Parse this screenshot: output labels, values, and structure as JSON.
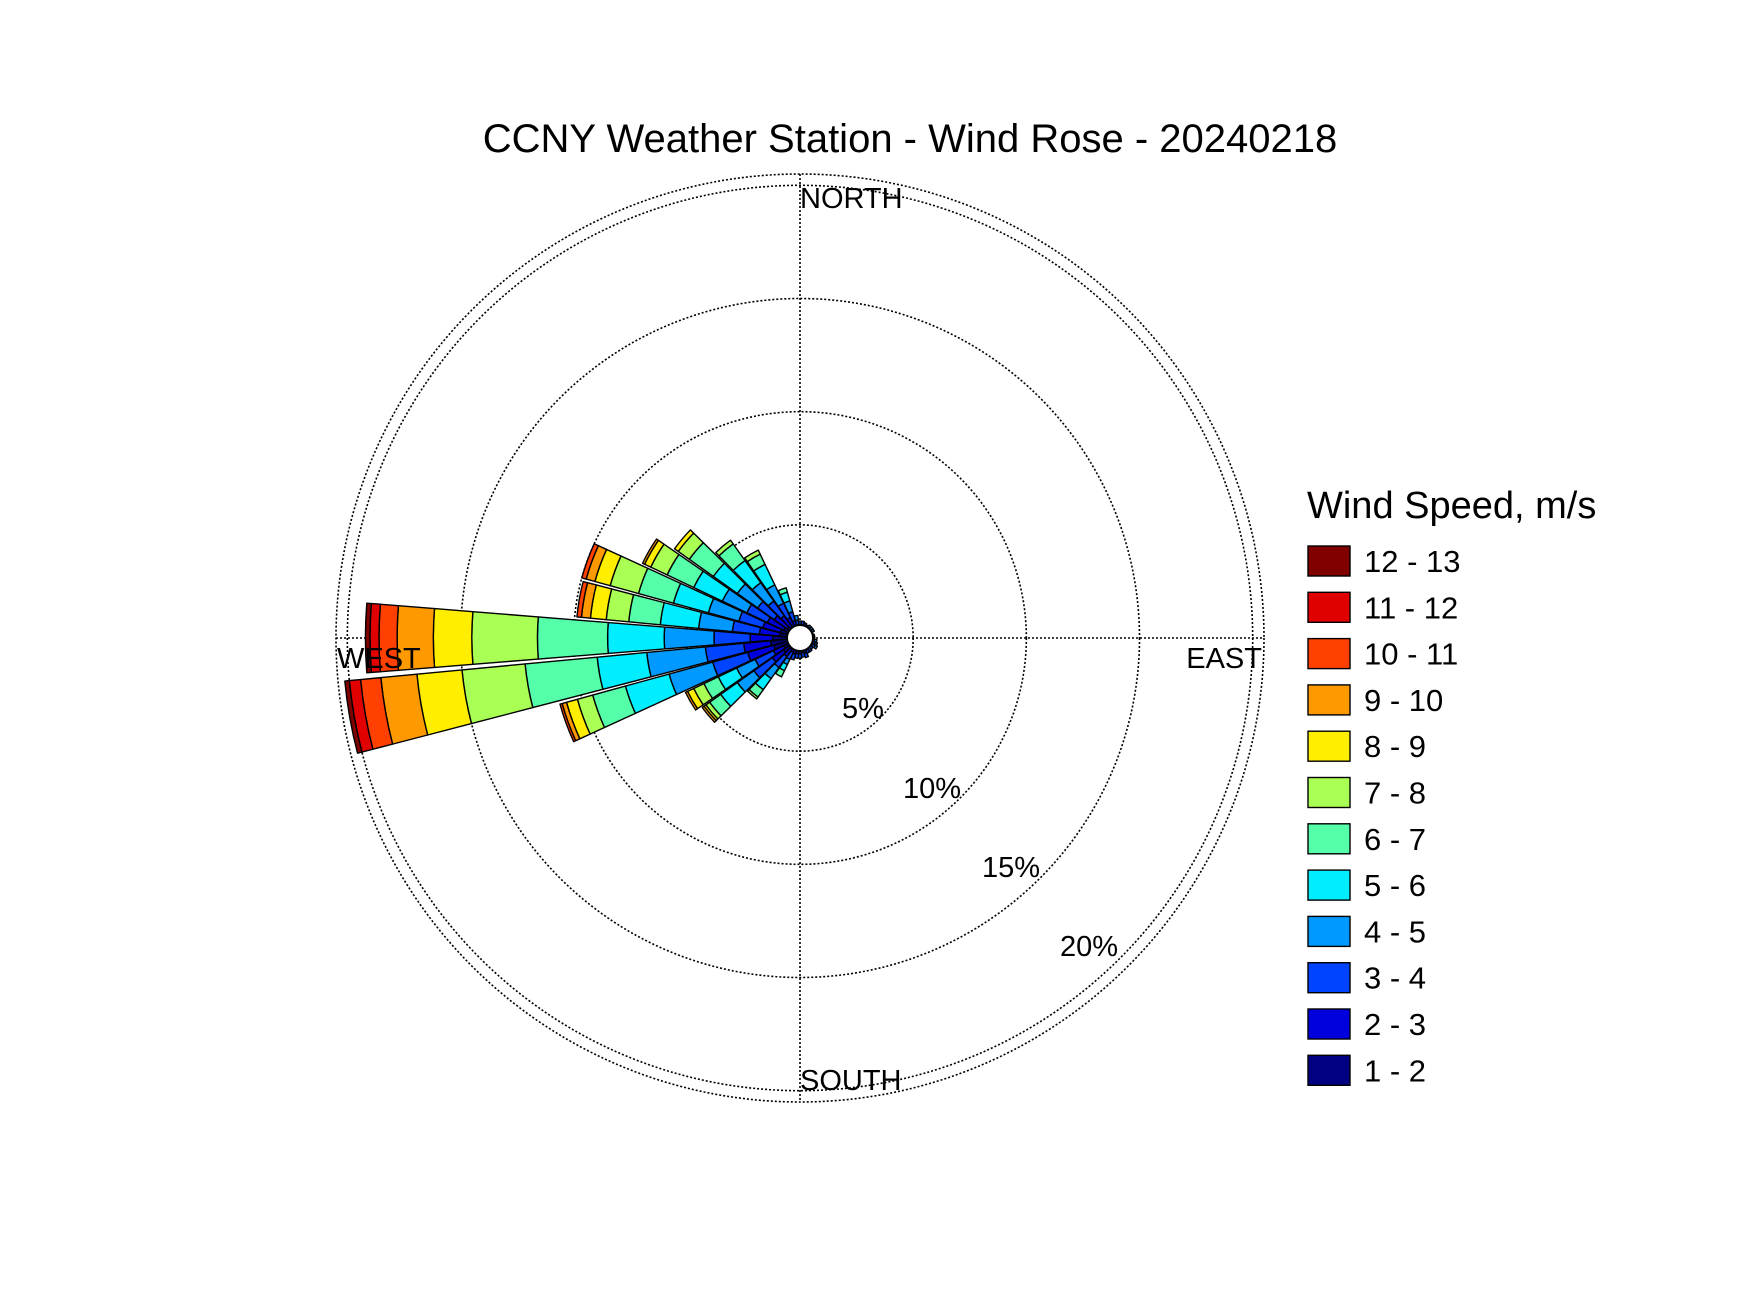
{
  "chart_data": {
    "type": "wind-rose",
    "title": "CCNY Weather Station - Wind Rose - 20240218",
    "directions": {
      "north": "NORTH",
      "east": "EAST",
      "south": "SOUTH",
      "west": "WEST"
    },
    "rings": [
      {
        "value": 5,
        "label": "5%"
      },
      {
        "value": 10,
        "label": "10%"
      },
      {
        "value": 15,
        "label": "15%"
      },
      {
        "value": 20,
        "label": "20%"
      }
    ],
    "rlim": [
      0,
      20.5
    ],
    "grid": true,
    "legend": {
      "title": "Wind Speed, m/s",
      "placement": "right",
      "bins": [
        {
          "label": "12 - 13",
          "color": "#800000"
        },
        {
          "label": "11 - 12",
          "color": "#e00000"
        },
        {
          "label": "10 - 11",
          "color": "#ff4000"
        },
        {
          "label": "9 - 10",
          "color": "#ff9900"
        },
        {
          "label": "8 - 9",
          "color": "#ffee00"
        },
        {
          "label": "7 - 8",
          "color": "#aaff55"
        },
        {
          "label": "6 - 7",
          "color": "#55ffaa"
        },
        {
          "label": "5 - 6",
          "color": "#00eeff"
        },
        {
          "label": "4 - 5",
          "color": "#0099ff"
        },
        {
          "label": "3 - 4",
          "color": "#0044ff"
        },
        {
          "label": "2 - 3",
          "color": "#0000dd"
        },
        {
          "label": "1 - 2",
          "color": "#000080"
        }
      ]
    },
    "sector_width_deg": 10,
    "sectors": [
      {
        "direction": 40,
        "cumulative": [
          0.35,
          0.5,
          0.6,
          0.7
        ]
      },
      {
        "direction": 50,
        "cumulative": [
          0.35,
          0.5,
          0.6,
          0.7
        ]
      },
      {
        "direction": 60,
        "cumulative": [
          0.35,
          0.5,
          0.6,
          0.7
        ]
      },
      {
        "direction": 70,
        "cumulative": [
          0.35,
          0.5,
          0.6
        ]
      },
      {
        "direction": 80,
        "cumulative": [
          0.4,
          0.55,
          0.65
        ]
      },
      {
        "direction": 90,
        "cumulative": [
          0.4,
          0.55,
          0.65
        ]
      },
      {
        "direction": 100,
        "cumulative": [
          0.4,
          0.55,
          0.65,
          0.75
        ]
      },
      {
        "direction": 110,
        "cumulative": [
          0.4,
          0.55,
          0.7,
          0.8
        ]
      },
      {
        "direction": 120,
        "cumulative": [
          0.45,
          0.6,
          0.75,
          0.85
        ]
      },
      {
        "direction": 130,
        "cumulative": [
          0.4,
          0.55,
          0.7
        ]
      },
      {
        "direction": 140,
        "cumulative": [
          0.45,
          0.6,
          0.75
        ]
      },
      {
        "direction": 150,
        "cumulative": [
          0.45,
          0.6,
          0.75
        ]
      },
      {
        "direction": 160,
        "cumulative": [
          0.5,
          0.7,
          0.9
        ]
      },
      {
        "direction": 170,
        "cumulative": [
          0.45,
          0.65,
          0.85
        ]
      },
      {
        "direction": 180,
        "cumulative": [
          0.5,
          0.7,
          0.9
        ]
      },
      {
        "direction": 190,
        "cumulative": [
          0.5,
          0.7,
          0.9
        ]
      },
      {
        "direction": 200,
        "cumulative": [
          0.5,
          0.75,
          1.0
        ]
      },
      {
        "direction": 210,
        "cumulative": [
          0.45,
          0.7,
          1.05,
          1.3,
          1.6,
          1.9
        ]
      },
      {
        "direction": 220,
        "cumulative": [
          0.6,
          1.0,
          1.6,
          2.2,
          2.8,
          3.2,
          3.3
        ]
      },
      {
        "direction": 230,
        "cumulative": [
          0.9,
          1.5,
          2.5,
          3.4,
          4.3,
          4.9,
          5.1,
          5.2,
          5.3
        ]
      },
      {
        "direction": 240,
        "cumulative": [
          0.8,
          1.3,
          2.2,
          3.1,
          4.0,
          4.7,
          5.2,
          5.5,
          5.6
        ]
      },
      {
        "direction": 250,
        "cumulative": [
          1.2,
          2.4,
          4.0,
          6.0,
          8.0,
          9.5,
          10.2,
          10.7,
          10.9,
          11.0
        ]
      },
      {
        "direction": 260,
        "cumulative": [
          1.3,
          2.5,
          4.2,
          6.8,
          9.0,
          12.2,
          15.0,
          17.0,
          18.6,
          19.5,
          20.0,
          20.2
        ]
      },
      {
        "direction": 270,
        "cumulative": [
          1.2,
          2.2,
          3.8,
          6.0,
          8.5,
          11.6,
          14.5,
          16.2,
          17.8,
          18.6,
          19.0,
          19.2
        ]
      },
      {
        "direction": 280,
        "cumulative": [
          0.9,
          1.8,
          3.0,
          4.5,
          6.2,
          7.6,
          8.6,
          9.3,
          9.7,
          9.9
        ]
      },
      {
        "direction": 290,
        "cumulative": [
          0.9,
          1.7,
          2.8,
          4.2,
          5.8,
          7.4,
          8.7,
          9.4,
          9.8,
          10.0
        ]
      },
      {
        "direction": 300,
        "cumulative": [
          0.8,
          1.6,
          2.6,
          3.8,
          5.2,
          6.5,
          7.3,
          7.6,
          7.7
        ]
      },
      {
        "direction": 310,
        "cumulative": [
          0.7,
          1.4,
          2.3,
          3.4,
          4.7,
          6.0,
          6.6,
          6.8
        ]
      },
      {
        "direction": 320,
        "cumulative": [
          0.6,
          1.2,
          2.0,
          3.0,
          4.2,
          5.1,
          5.3
        ]
      },
      {
        "direction": 330,
        "cumulative": [
          0.5,
          1.0,
          1.7,
          2.6,
          3.6,
          4.1,
          4.3
        ]
      },
      {
        "direction": 340,
        "cumulative": [
          0.45,
          0.8,
          1.2,
          1.7,
          2.1,
          2.3
        ]
      },
      {
        "direction": 350,
        "cumulative": [
          0.4,
          0.6,
          0.8,
          1.0
        ]
      },
      {
        "direction": 0,
        "cumulative": [
          0.4,
          0.6,
          0.75
        ]
      },
      {
        "direction": 10,
        "cumulative": [
          0.4,
          0.6,
          0.75
        ]
      },
      {
        "direction": 20,
        "cumulative": [
          0.35,
          0.55,
          0.7
        ]
      },
      {
        "direction": 30,
        "cumulative": [
          0.35,
          0.5,
          0.65
        ]
      }
    ]
  }
}
